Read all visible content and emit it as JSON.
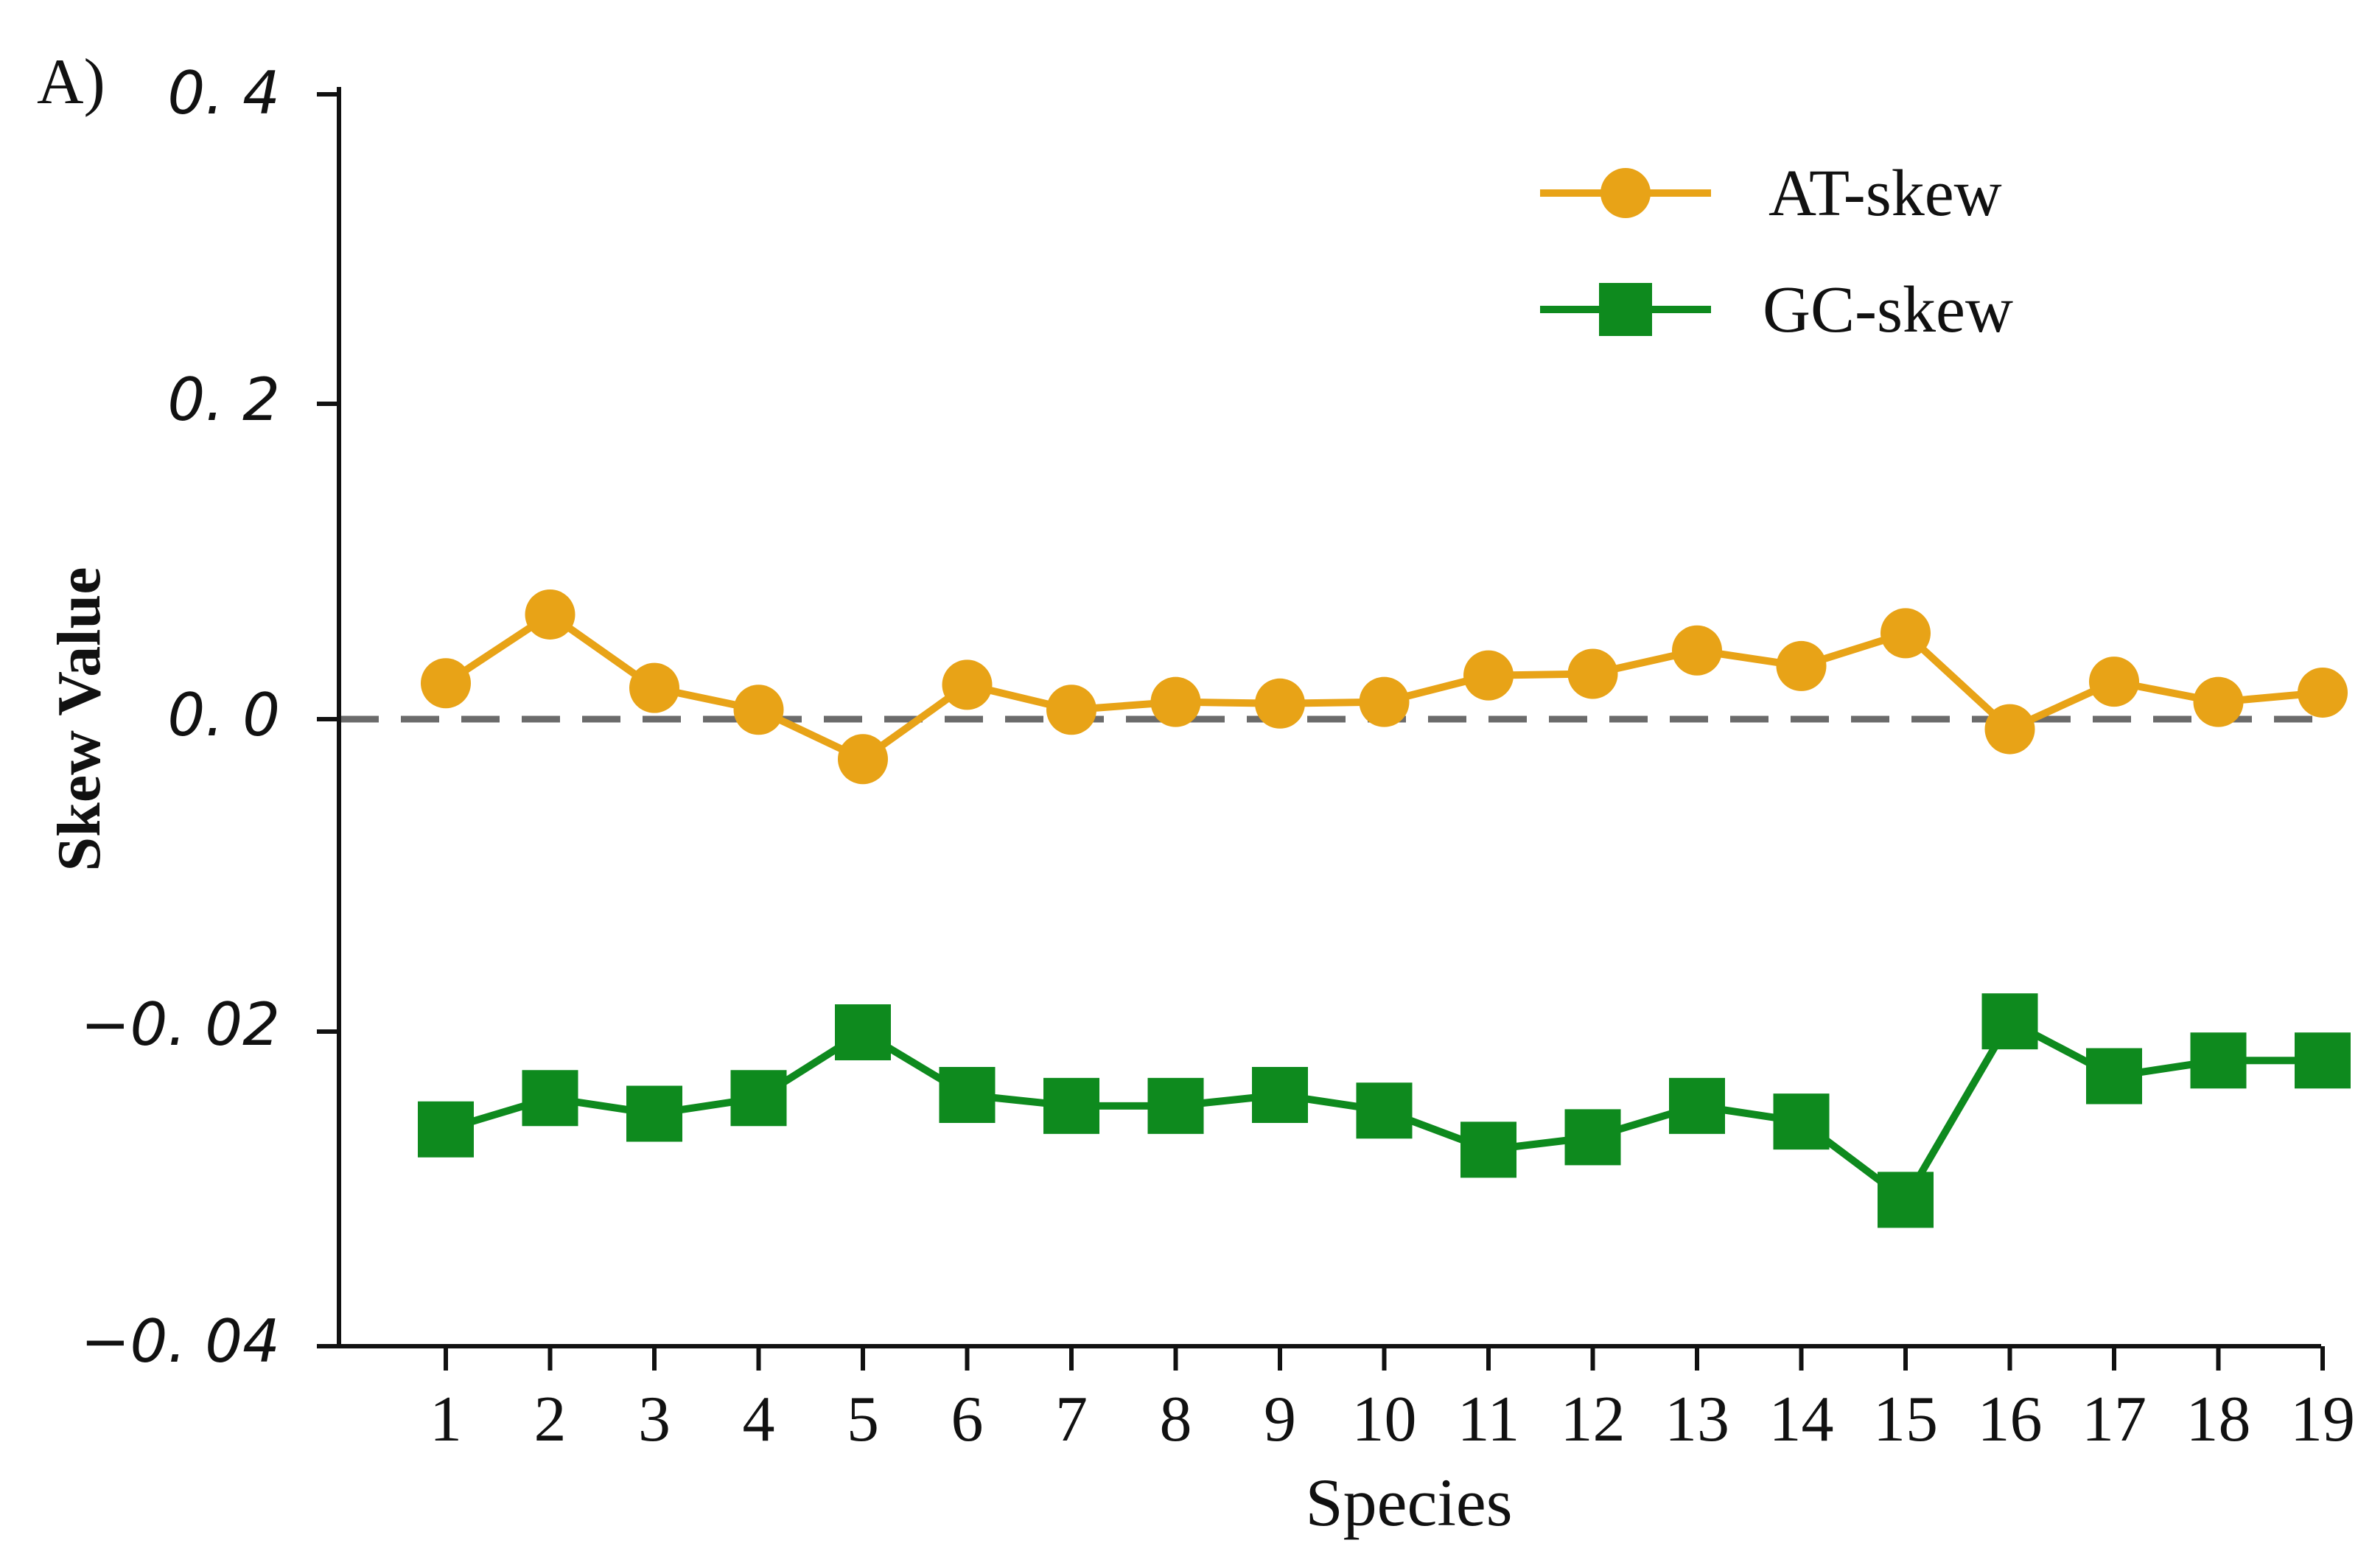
{
  "panel_label": "A)",
  "chart_data": {
    "type": "line",
    "title": "",
    "xlabel": "Species",
    "ylabel": "Skew Value",
    "categories": [
      "1",
      "2",
      "3",
      "4",
      "5",
      "6",
      "7",
      "8",
      "9",
      "10",
      "11",
      "12",
      "13",
      "14",
      "15",
      "16",
      "17",
      "18",
      "19"
    ],
    "yticks": [
      "0. 4",
      "0. 2",
      "0. 0",
      "−0. 02",
      "−0. 04"
    ],
    "reference_line": {
      "y": 0.0,
      "style": "dashed",
      "color": "#6b6b6b"
    },
    "legend_position": "top-right",
    "series": [
      {
        "name": "AT-skew",
        "marker": "circle",
        "color": "#E8A317",
        "values": [
          0.023,
          0.067,
          0.02,
          0.006,
          -0.008,
          0.022,
          0.006,
          0.011,
          0.01,
          0.011,
          0.028,
          0.029,
          0.044,
          0.034,
          0.055,
          -0.002,
          0.024,
          0.011,
          0.017
        ]
      },
      {
        "name": "GC-skew",
        "marker": "square",
        "color": "#0E8A1E",
        "values": [
          -0.0262,
          -0.0242,
          -0.0252,
          -0.0242,
          -0.02,
          -0.024,
          -0.0247,
          -0.0247,
          -0.024,
          -0.025,
          -0.0275,
          -0.0267,
          -0.0247,
          -0.0257,
          -0.0307,
          -0.0193,
          -0.0228,
          -0.0218,
          -0.0218
        ]
      }
    ]
  }
}
